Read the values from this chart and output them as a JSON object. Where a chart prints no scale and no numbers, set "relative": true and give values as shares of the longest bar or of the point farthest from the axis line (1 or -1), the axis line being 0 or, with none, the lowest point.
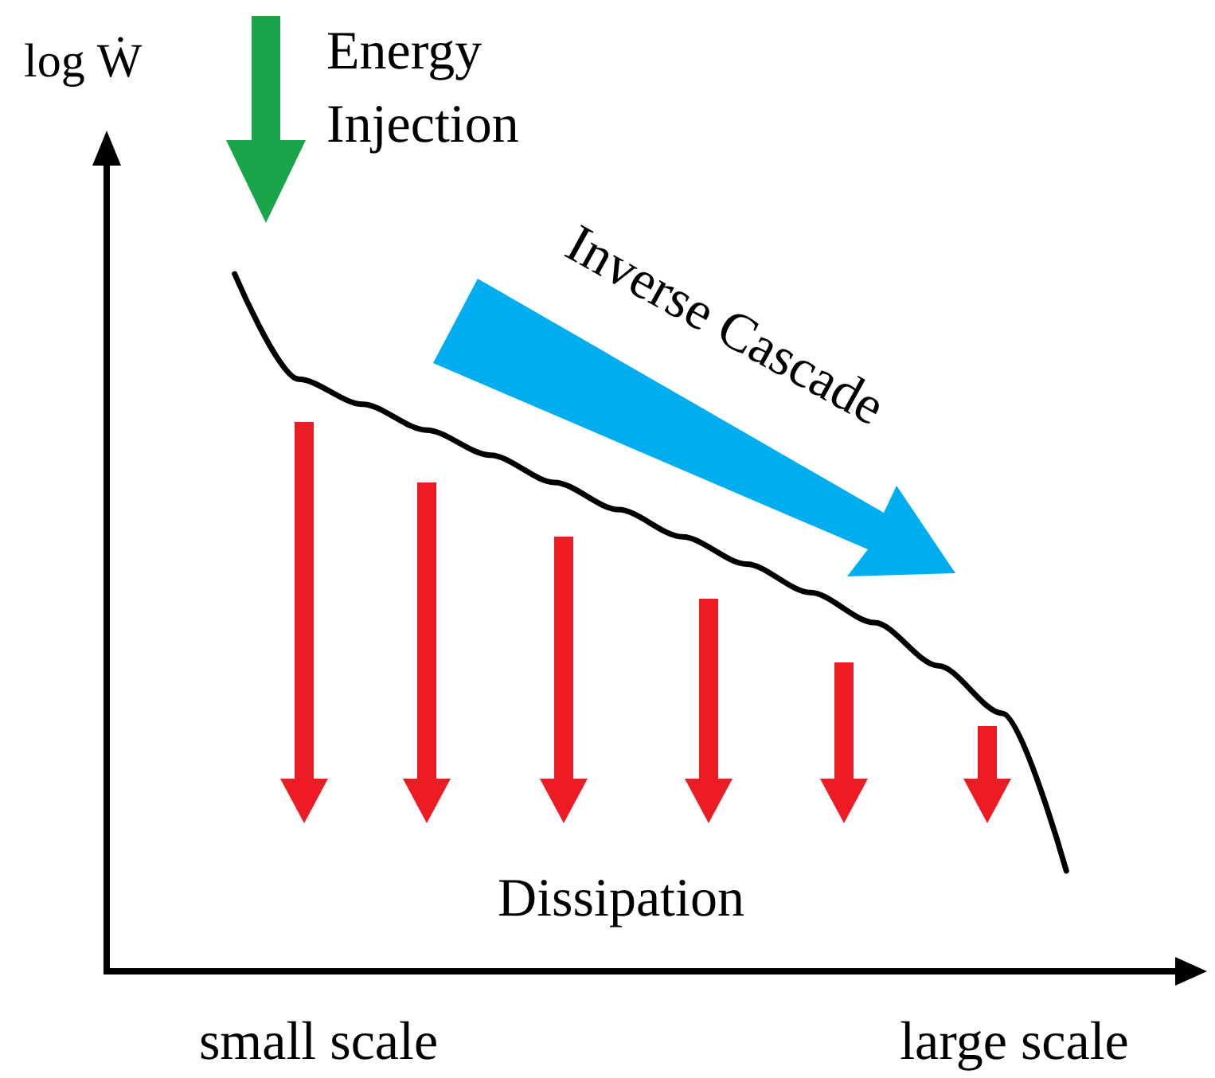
{
  "chart_data": {
    "type": "line",
    "relative": true,
    "ylabel": "log Ẇ",
    "categories": [
      null,
      null,
      null,
      null,
      null,
      null,
      null,
      null,
      null,
      null,
      null,
      null,
      null,
      null,
      null,
      null,
      null,
      null
    ],
    "series": [
      {
        "color": "#000000",
        "values": [
          null,
          null,
          1.0,
          0.849,
          0.813,
          0.776,
          0.74,
          0.701,
          0.662,
          0.623,
          0.584,
          0.543,
          0.5,
          0.438,
          0.37,
          0.144,
          null,
          null
        ]
      }
    ],
    "marker": "none",
    "line_style": "solid",
    "grid": false,
    "annotations": [
      "Energy Injection",
      "Inverse Cascade",
      "Dissipation",
      "small scale",
      "large scale"
    ]
  }
}
